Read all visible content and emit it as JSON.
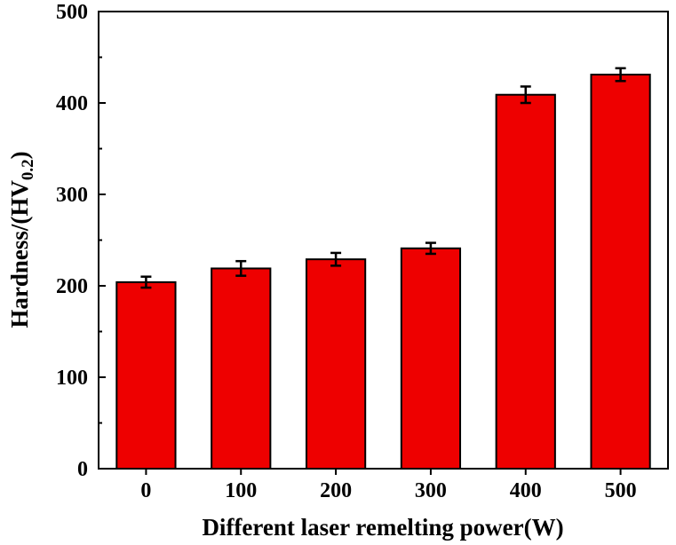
{
  "chart_data": {
    "type": "bar",
    "categories": [
      "0",
      "100",
      "200",
      "300",
      "400",
      "500"
    ],
    "values": [
      204,
      219,
      229,
      241,
      409,
      431
    ],
    "errors": [
      6,
      8,
      7,
      6,
      9,
      7
    ],
    "xlabel": "Different laser remelting power(W)",
    "ylabel": {
      "prefix": "Hardness/(HV",
      "subscript": "0.2",
      "suffix": ")"
    },
    "ylim": [
      0,
      500
    ],
    "yticks": [
      "0",
      "100",
      "200",
      "300",
      "400",
      "500"
    ],
    "grid": false,
    "bar_color": "#ee0000",
    "bar_edge_color": "#000000"
  }
}
